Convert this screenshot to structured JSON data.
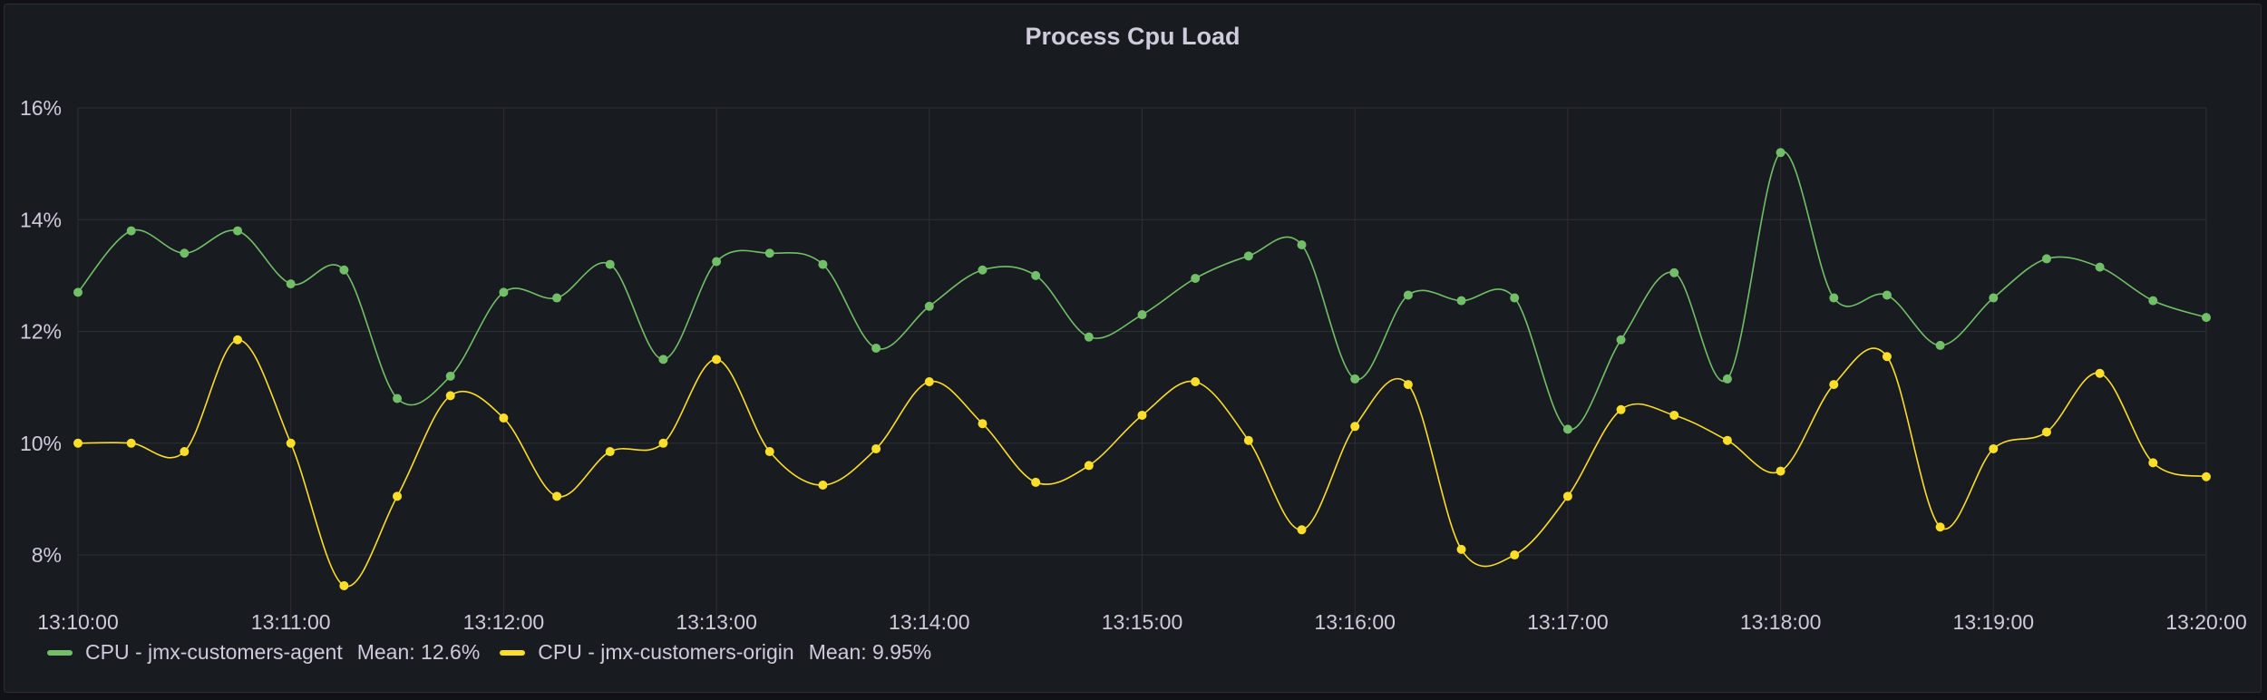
{
  "panel": {
    "title": "Process Cpu Load"
  },
  "colors": {
    "agent": "#73bf69",
    "origin": "#fade2a"
  },
  "chart_data": {
    "type": "line",
    "title": "Process Cpu Load",
    "x": [
      "13:10:00",
      "13:10:15",
      "13:10:30",
      "13:10:45",
      "13:11:00",
      "13:11:15",
      "13:11:30",
      "13:11:45",
      "13:12:00",
      "13:12:15",
      "13:12:30",
      "13:12:45",
      "13:13:00",
      "13:13:15",
      "13:13:30",
      "13:13:45",
      "13:14:00",
      "13:14:15",
      "13:14:30",
      "13:14:45",
      "13:15:00",
      "13:15:15",
      "13:15:30",
      "13:15:45",
      "13:16:00",
      "13:16:15",
      "13:16:30",
      "13:16:45",
      "13:17:00",
      "13:17:15",
      "13:17:30",
      "13:17:45",
      "13:18:00",
      "13:18:15",
      "13:18:30",
      "13:18:45",
      "13:19:00",
      "13:19:15",
      "13:19:30",
      "13:19:45",
      "13:20:00"
    ],
    "x_ticks": [
      "13:10:00",
      "13:11:00",
      "13:12:00",
      "13:13:00",
      "13:14:00",
      "13:15:00",
      "13:16:00",
      "13:17:00",
      "13:18:00",
      "13:19:00",
      "13:20:00"
    ],
    "y_ticks": [
      "8%",
      "10%",
      "12%",
      "14%",
      "16%"
    ],
    "y_tick_values": [
      8,
      10,
      12,
      14,
      16
    ],
    "ylim": [
      6.8,
      16.0
    ],
    "grid": true,
    "legend_position": "bottom-left",
    "series": [
      {
        "name": "CPU - jmx-customers-agent",
        "mean_label": "Mean: 12.6%",
        "color": "#73bf69",
        "values": [
          12.7,
          13.8,
          13.4,
          13.8,
          12.85,
          13.1,
          10.8,
          11.2,
          12.7,
          12.6,
          13.2,
          11.5,
          13.25,
          13.4,
          13.2,
          11.7,
          12.45,
          13.1,
          13.0,
          11.9,
          12.3,
          12.95,
          13.35,
          13.55,
          11.15,
          12.65,
          12.55,
          12.6,
          10.25,
          11.85,
          13.05,
          11.15,
          15.2,
          12.6,
          12.65,
          11.75,
          12.6,
          13.3,
          13.15,
          12.55,
          12.25
        ]
      },
      {
        "name": "CPU - jmx-customers-origin",
        "mean_label": "Mean: 9.95%",
        "color": "#fade2a",
        "values": [
          10.0,
          10.0,
          9.85,
          11.85,
          10.0,
          7.45,
          9.05,
          10.85,
          10.45,
          9.05,
          9.85,
          10.0,
          11.5,
          9.85,
          9.25,
          9.9,
          11.1,
          10.35,
          9.3,
          9.6,
          10.5,
          11.1,
          10.05,
          8.45,
          10.3,
          11.05,
          8.1,
          8.0,
          9.05,
          10.6,
          10.5,
          10.05,
          9.5,
          11.05,
          11.55,
          8.5,
          9.9,
          10.2,
          11.25,
          9.65,
          9.4
        ]
      }
    ]
  }
}
